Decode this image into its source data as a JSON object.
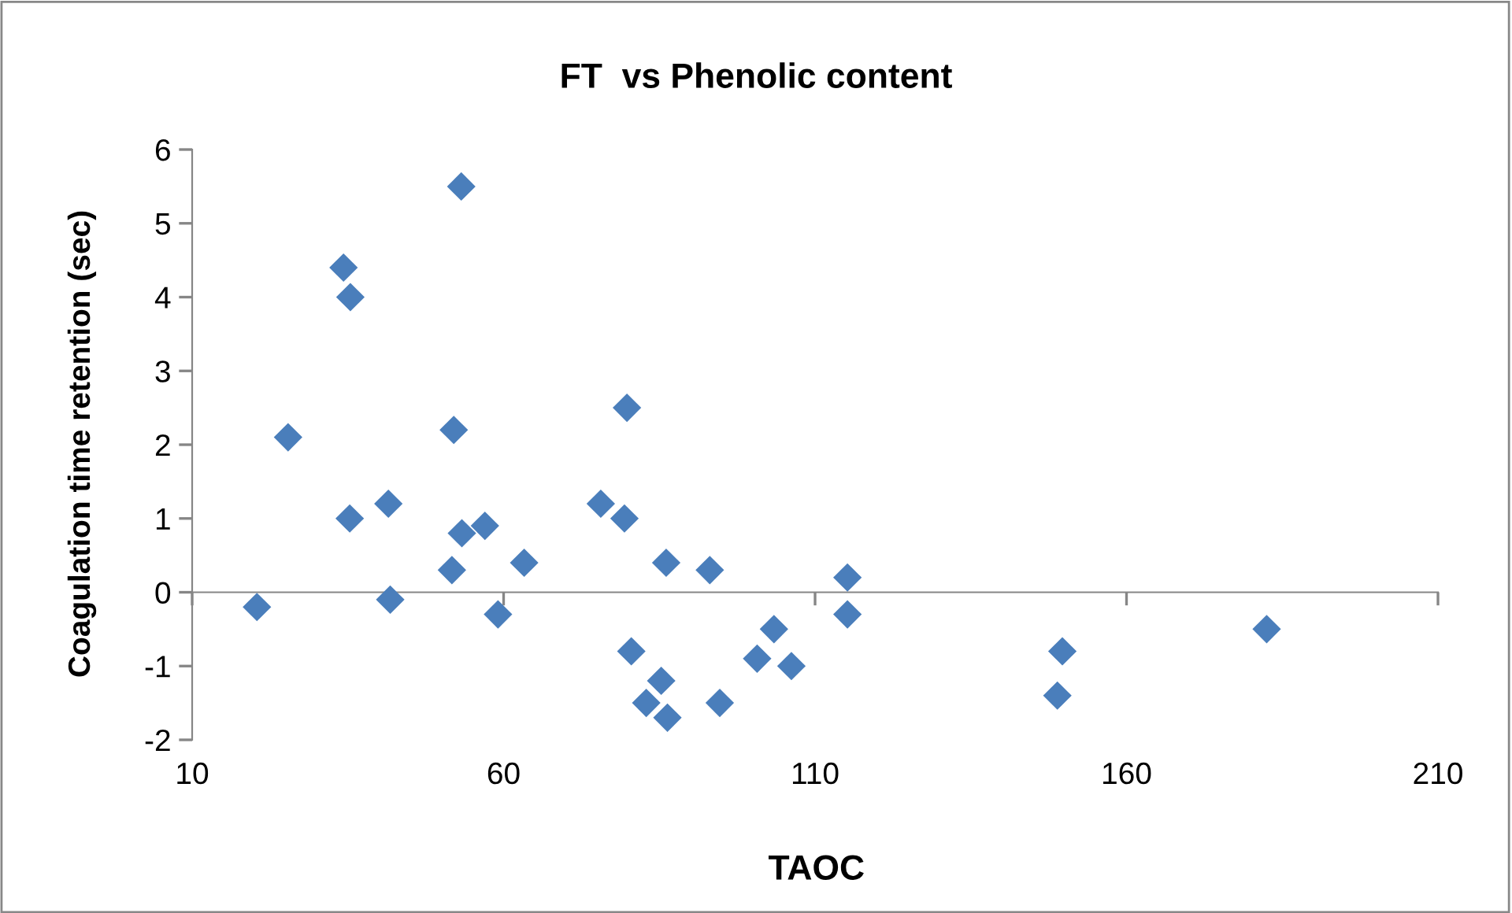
{
  "chart_data": {
    "type": "scatter",
    "title": "FT  vs Phenolic content",
    "xlabel": "TAOC",
    "ylabel": "Coagulation time retention (sec)",
    "x": [
      20.4,
      25.4,
      34.3,
      35.4,
      35.3,
      41.5,
      41.8,
      53.2,
      52.0,
      51.7,
      53.3,
      57.0,
      63.3,
      59.1,
      79.8,
      75.6,
      79.4,
      86.1,
      93.1,
      115.2,
      115.2,
      80.5,
      85.3,
      82.9,
      86.3,
      94.7,
      103.4,
      100.7,
      106.2,
      149.7,
      148.9,
      182.5
    ],
    "values": [
      -0.2,
      2.1,
      4.4,
      4.0,
      1.0,
      1.2,
      -0.1,
      5.5,
      2.2,
      0.3,
      0.8,
      0.9,
      0.4,
      -0.3,
      2.5,
      1.2,
      1.0,
      0.4,
      0.3,
      0.2,
      -0.3,
      -0.8,
      -1.2,
      -1.5,
      -1.7,
      -1.5,
      -0.5,
      -0.9,
      -1.0,
      -0.8,
      -1.4,
      -0.5
    ],
    "color": "#4a7ebb",
    "marker": "diamond",
    "xlim": [
      10,
      210
    ],
    "xticks": [
      10,
      60,
      110,
      160,
      210
    ],
    "ylim": [
      -2,
      6
    ],
    "yticks": [
      -2,
      -1,
      0,
      1,
      2,
      3,
      4,
      5,
      6
    ],
    "legend": false
  }
}
